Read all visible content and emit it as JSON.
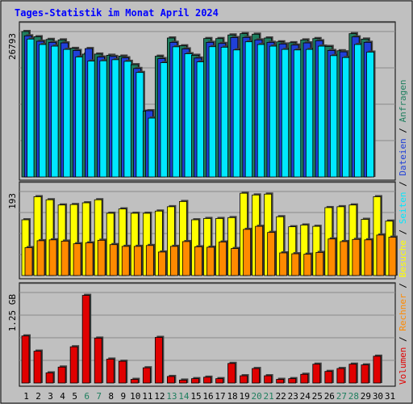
{
  "title": "Tages-Statistik im Monat April 2024",
  "colors": {
    "background": "#c0c0c0",
    "title": "#0000ff",
    "anfragen": "#1f7f5f",
    "dateien": "#2040d8",
    "seiten": "#00e8ff",
    "besuche": "#ffff00",
    "rechner": "#ff8a00",
    "volumen": "#e00000",
    "weekend_day": "#1f7f5f",
    "weekday": "#000000"
  },
  "legend": {
    "anfragen": "Anfragen",
    "dateien": "Dateien",
    "seiten": "Seiten",
    "besuche": "Besuche",
    "rechner": "Rechner",
    "volumen": "Volumen",
    "sep": "/"
  },
  "chart_data": {
    "type": "bar",
    "title": "Tages-Statistik im Monat April 2024",
    "x": [
      "1",
      "2",
      "3",
      "4",
      "5",
      "6",
      "7",
      "8",
      "9",
      "10",
      "11",
      "12",
      "13",
      "14",
      "15",
      "16",
      "17",
      "18",
      "19",
      "20",
      "21",
      "22",
      "23",
      "24",
      "25",
      "26",
      "27",
      "28",
      "29",
      "30",
      "31"
    ],
    "weekend_days": [
      "6",
      "7",
      "13",
      "14",
      "20",
      "21",
      "27",
      "28"
    ],
    "panels": [
      {
        "name": "hits",
        "ylabel": "26793",
        "ymax": 26793,
        "series": [
          {
            "name": "Anfragen",
            "values": [
              26793,
              25830,
              25340,
              25250,
              23680,
              22630,
              22640,
              22420,
              22260,
              20680,
              12120,
              22240,
              25600,
              24160,
              22410,
              25500,
              25500,
              26160,
              26400,
              26300,
              25600,
              24890,
              24730,
              25250,
              25490,
              24040,
              23250,
              26400,
              25400,
              0,
              0
            ]
          },
          {
            "name": "Dateien",
            "values": [
              26000,
              25000,
              24800,
              24700,
              23300,
              23650,
              22100,
              22200,
              21950,
              19980,
              12200,
              21800,
              24800,
              23600,
              21900,
              24800,
              24600,
              25680,
              25700,
              25250,
              24800,
              24500,
              24300,
              24700,
              25090,
              23300,
              23050,
              25800,
              24800,
              0,
              0
            ]
          },
          {
            "name": "Seiten",
            "values": [
              25400,
              24400,
              24100,
              23500,
              22100,
              21350,
              21400,
              21600,
              21300,
              19250,
              10850,
              21050,
              23980,
              22700,
              21200,
              24000,
              23900,
              23400,
              24900,
              24400,
              24100,
              23500,
              23400,
              23500,
              24100,
              22350,
              22000,
              24400,
              23000,
              0,
              0
            ]
          }
        ]
      },
      {
        "name": "visits",
        "ylabel": "193",
        "ymax": 193,
        "series": [
          {
            "name": "Besuche",
            "values": [
              128,
              181,
              174,
              162,
              163,
              167,
              174,
              143,
              153,
              143,
              143,
              148,
              158,
              170,
              128,
              131,
              131,
              133,
              189,
              185,
              187,
              135,
              112,
              116,
              113,
              156,
              158,
              162,
              129,
              181,
              125
            ]
          },
          {
            "name": "Rechner",
            "values": [
              64,
              80,
              82,
              79,
              73,
              75,
              81,
              71,
              67,
              67,
              69,
              54,
              67,
              78,
              66,
              65,
              77,
              62,
              106,
              113,
              99,
              52,
              50,
              49,
              53,
              84,
              78,
              83,
              82,
              93,
              88
            ]
          }
        ]
      },
      {
        "name": "volume",
        "ylabel": "1.25 GB",
        "ymax": 1.25,
        "series": [
          {
            "name": "Volumen",
            "values": [
              0.65,
              0.44,
              0.14,
              0.22,
              0.5,
              1.21,
              0.62,
              0.33,
              0.3,
              0.05,
              0.21,
              0.63,
              0.09,
              0.04,
              0.06,
              0.08,
              0.06,
              0.27,
              0.1,
              0.2,
              0.1,
              0.05,
              0.06,
              0.12,
              0.26,
              0.16,
              0.2,
              0.26,
              0.25,
              0.37,
              0
            ]
          }
        ]
      }
    ]
  }
}
